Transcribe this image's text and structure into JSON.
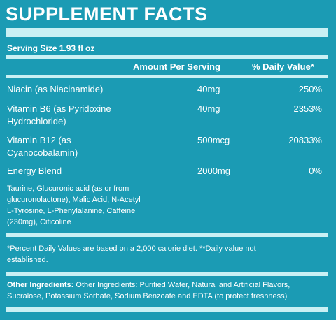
{
  "title": "SUPPLEMENT FACTS",
  "serving_size": "Serving Size 1.93 fl oz",
  "headers": {
    "amount": "Amount Per Serving",
    "daily_value": "% Daily Value*"
  },
  "rows": [
    {
      "name_line1": "Niacin (as Niacinamide)",
      "name_line2": "",
      "amount": "40mg",
      "dv": "250%"
    },
    {
      "name_line1": "Vitamin B6 (as Pyridoxine",
      "name_line2": "Hydrochloride)",
      "amount": "40mg",
      "dv": "2353%"
    },
    {
      "name_line1": "Vitamin B12 (as",
      "name_line2": "Cyanocobalamin)",
      "amount": "500mcg",
      "dv": "20833%"
    },
    {
      "name_line1": "Energy Blend",
      "name_line2": "",
      "amount": "2000mg",
      "dv": "0%"
    }
  ],
  "blend_lines": [
    "Taurine, Glucuronic acid (as or from",
    "glucuronolactone), Malic Acid, N-Acetyl",
    "L-Tyrosine, L-Phenylalanine, Caffeine",
    "(230mg), Citicoline"
  ],
  "footnote_lines": [
    "*Percent Daily Values are based on a 2,000 calorie diet. **Daily value not",
    "established."
  ],
  "other_ingredients": {
    "label": "Other Ingredients:",
    "line1": " Other Ingredients: Purified Water, Natural and Artificial Flavors,",
    "line2": "Sucralose, Potassium Sorbate, Sodium Benzoate and EDTA (to protect freshness)"
  }
}
